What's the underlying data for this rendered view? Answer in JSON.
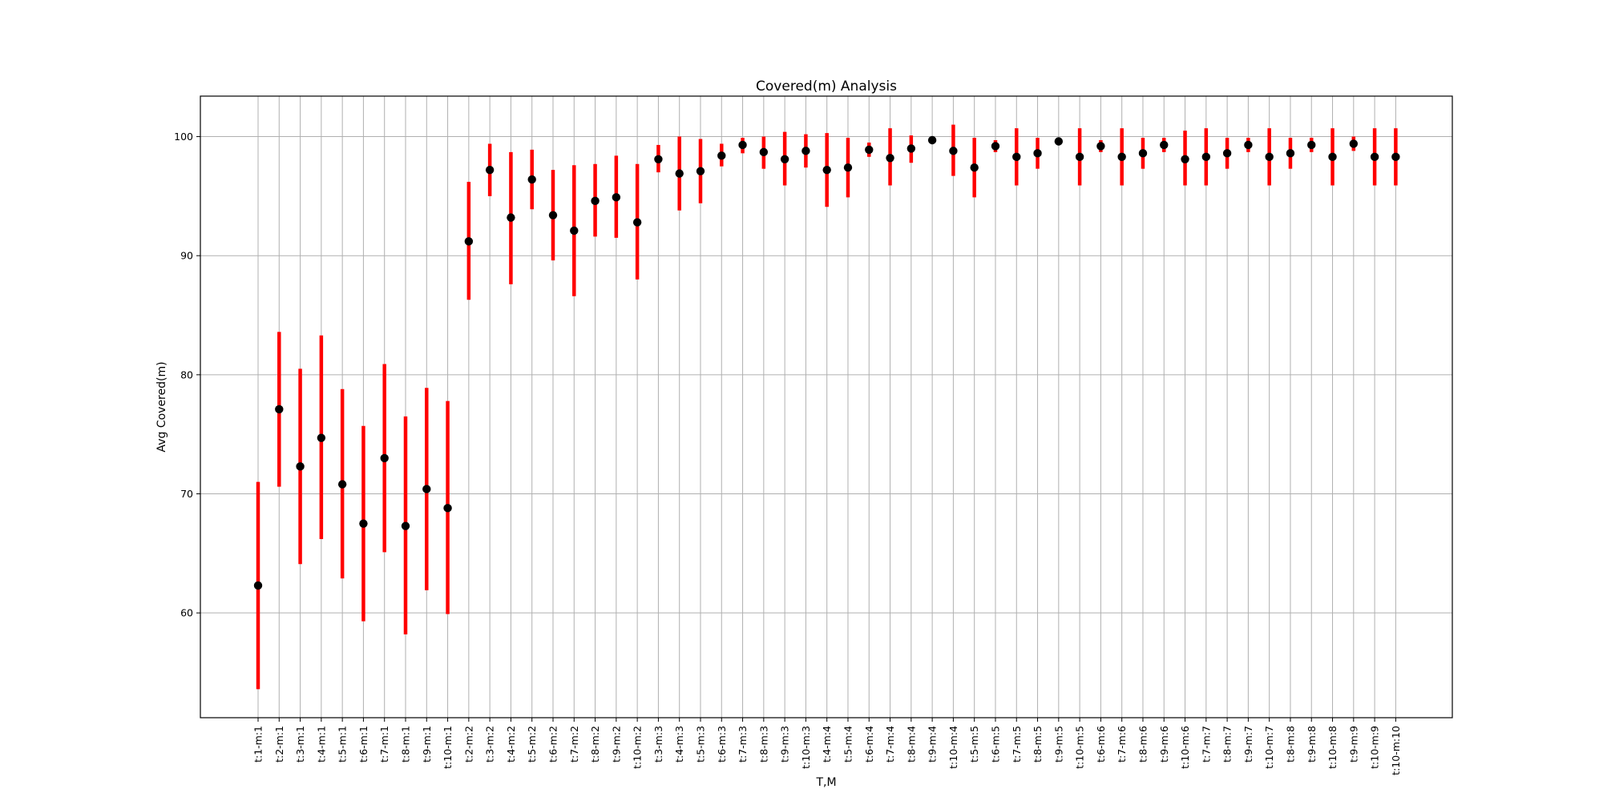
{
  "chart_data": {
    "type": "scatter",
    "title": "Covered(m) Analysis",
    "xlabel": "T,M",
    "ylabel": "Avg Covered(m)",
    "ylim": [
      51.2,
      103.4
    ],
    "yticks": [
      60,
      70,
      80,
      90,
      100
    ],
    "grid": true,
    "marker_color": "#000000",
    "errorbar_color": "#ff0000",
    "categories": [
      "t:1-m:1",
      "t:2-m:1",
      "t:3-m:1",
      "t:4-m:1",
      "t:5-m:1",
      "t:6-m:1",
      "t:7-m:1",
      "t:8-m:1",
      "t:9-m:1",
      "t:10-m:1",
      "t:2-m:2",
      "t:3-m:2",
      "t:4-m:2",
      "t:5-m:2",
      "t:6-m:2",
      "t:7-m:2",
      "t:8-m:2",
      "t:9-m:2",
      "t:10-m:2",
      "t:3-m:3",
      "t:4-m:3",
      "t:5-m:3",
      "t:6-m:3",
      "t:7-m:3",
      "t:8-m:3",
      "t:9-m:3",
      "t:10-m:3",
      "t:4-m:4",
      "t:5-m:4",
      "t:6-m:4",
      "t:7-m:4",
      "t:8-m:4",
      "t:9-m:4",
      "t:10-m:4",
      "t:5-m:5",
      "t:6-m:5",
      "t:7-m:5",
      "t:8-m:5",
      "t:9-m:5",
      "t:10-m:5",
      "t:6-m:6",
      "t:7-m:6",
      "t:8-m:6",
      "t:9-m:6",
      "t:10-m:6",
      "t:7-m:7",
      "t:8-m:7",
      "t:9-m:7",
      "t:10-m:7",
      "t:8-m:8",
      "t:9-m:8",
      "t:10-m:8",
      "t:9-m:9",
      "t:10-m:9",
      "t:10-m:10"
    ],
    "values": [
      62.3,
      77.1,
      72.3,
      74.7,
      70.8,
      67.5,
      73.0,
      67.3,
      70.4,
      68.8,
      91.2,
      97.2,
      93.2,
      96.4,
      93.4,
      92.1,
      94.6,
      94.9,
      92.8,
      98.1,
      96.9,
      97.1,
      98.4,
      99.3,
      98.7,
      98.1,
      98.8,
      97.2,
      97.4,
      98.9,
      98.2,
      99.0,
      99.7,
      98.8,
      97.4,
      99.2,
      98.3,
      98.6,
      99.6,
      98.3,
      99.2,
      98.3,
      98.6,
      99.3,
      98.1,
      98.3,
      98.6,
      99.3,
      98.3,
      98.6,
      99.3,
      98.3,
      99.4,
      98.3,
      98.3
    ],
    "error_low": [
      53.6,
      70.6,
      64.1,
      66.2,
      62.9,
      59.3,
      65.1,
      58.2,
      61.9,
      59.9,
      86.3,
      95.0,
      87.6,
      93.9,
      89.6,
      86.6,
      91.6,
      91.5,
      88.0,
      97.0,
      93.8,
      94.4,
      97.5,
      98.6,
      97.3,
      95.9,
      97.4,
      94.1,
      94.9,
      98.3,
      95.9,
      97.8,
      99.5,
      96.7,
      94.9,
      98.7,
      95.9,
      97.3,
      99.4,
      95.9,
      98.7,
      95.9,
      97.3,
      98.7,
      95.9,
      95.9,
      97.3,
      98.7,
      95.9,
      97.3,
      98.7,
      95.9,
      98.8,
      95.9,
      95.9
    ],
    "error_high": [
      71.0,
      83.6,
      80.5,
      83.3,
      78.8,
      75.7,
      80.9,
      76.5,
      78.9,
      77.8,
      96.2,
      99.4,
      98.7,
      98.9,
      97.2,
      97.6,
      97.7,
      98.4,
      97.7,
      99.3,
      100.0,
      99.8,
      99.4,
      99.9,
      100.0,
      100.4,
      100.2,
      100.3,
      99.9,
      99.5,
      100.7,
      100.1,
      99.9,
      101.0,
      99.9,
      99.7,
      100.7,
      99.9,
      99.8,
      100.7,
      99.7,
      100.7,
      99.9,
      99.9,
      100.5,
      100.7,
      99.9,
      99.9,
      100.7,
      99.9,
      99.9,
      100.7,
      100.0,
      100.7,
      100.7
    ]
  }
}
